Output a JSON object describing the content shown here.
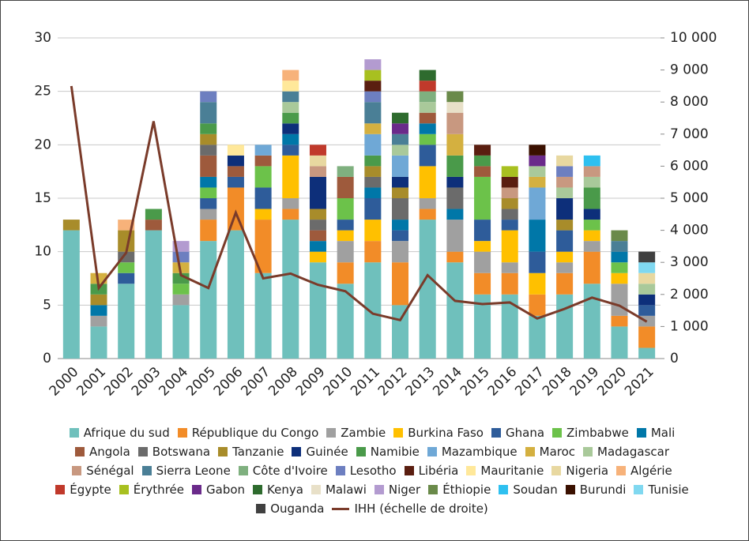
{
  "chart_data": {
    "type": "bar",
    "categories": [
      "2000",
      "2001",
      "2002",
      "2003",
      "2004",
      "2005",
      "2006",
      "2007",
      "2008",
      "2009",
      "2010",
      "2011",
      "2012",
      "2013",
      "2014",
      "2015",
      "2016",
      "2017",
      "2018",
      "2019",
      "2020",
      "2021"
    ],
    "ylim": [
      0,
      30
    ],
    "yticks": [
      0,
      5,
      10,
      15,
      20,
      25,
      30
    ],
    "y2lim": [
      0,
      10000
    ],
    "y2ticks": [
      0,
      {
        "value": 1000,
        "label": "1 000"
      },
      {
        "value": 2000,
        "label": "2 000"
      },
      {
        "value": 3000,
        "label": "3 000"
      },
      {
        "value": 4000,
        "label": "4 000"
      },
      {
        "value": 5000,
        "label": "5 000"
      },
      {
        "value": 6000,
        "label": "6 000"
      },
      {
        "value": 7000,
        "label": "7 000"
      },
      {
        "value": 8000,
        "label": "8 000"
      },
      {
        "value": 9000,
        "label": "9 000"
      },
      {
        "value": 10000,
        "label": "10 000"
      }
    ],
    "grid": true,
    "legend": "bottom",
    "series": [
      {
        "name": "Afrique du sud",
        "color": "#6fc0bc",
        "values": [
          12,
          3,
          7,
          12,
          5,
          11,
          12,
          8,
          13,
          9,
          7,
          9,
          5,
          13,
          9,
          6,
          6,
          4,
          6,
          7,
          3,
          1
        ]
      },
      {
        "name": "République du Congo",
        "color": "#f28c28",
        "values": [
          0,
          0,
          0,
          0,
          0,
          2,
          4,
          5,
          1,
          0,
          2,
          2,
          4,
          1,
          1,
          2,
          2,
          2,
          2,
          3,
          1,
          2
        ]
      },
      {
        "name": "Zambie",
        "color": "#a0a0a0",
        "values": [
          0,
          1,
          0,
          0,
          1,
          1,
          0,
          0,
          1,
          0,
          2,
          0,
          2,
          1,
          3,
          2,
          1,
          0,
          1,
          1,
          3,
          1
        ]
      },
      {
        "name": "Burkina Faso",
        "color": "#ffc000",
        "values": [
          0,
          0,
          0,
          0,
          0,
          0,
          0,
          1,
          4,
          1,
          1,
          2,
          0,
          3,
          0,
          1,
          3,
          2,
          1,
          1,
          1,
          0
        ]
      },
      {
        "name": "Ghana",
        "color": "#2e5c9a",
        "values": [
          0,
          0,
          1,
          0,
          0,
          1,
          1,
          2,
          1,
          0,
          1,
          2,
          1,
          2,
          0,
          2,
          1,
          2,
          2,
          0,
          0,
          1
        ]
      },
      {
        "name": "Zimbabwe",
        "color": "#6cc24a",
        "values": [
          0,
          0,
          1,
          0,
          1,
          1,
          0,
          2,
          0,
          0,
          2,
          0,
          0,
          1,
          0,
          4,
          0,
          0,
          0,
          1,
          1,
          0
        ]
      },
      {
        "name": "Mali",
        "color": "#0077a8",
        "values": [
          0,
          1,
          0,
          0,
          0,
          1,
          0,
          0,
          1,
          1,
          0,
          1,
          1,
          1,
          1,
          0,
          0,
          3,
          0,
          0,
          1,
          0
        ]
      },
      {
        "name": "Angola",
        "color": "#9e5a3c",
        "values": [
          0,
          0,
          0,
          1,
          0,
          2,
          1,
          1,
          0,
          1,
          2,
          0,
          0,
          1,
          0,
          1,
          0,
          0,
          0,
          0,
          0,
          0
        ]
      },
      {
        "name": "Botswana",
        "color": "#6b6b6b",
        "values": [
          0,
          0,
          1,
          0,
          0,
          1,
          0,
          0,
          0,
          1,
          0,
          1,
          2,
          0,
          2,
          0,
          1,
          0,
          0,
          0,
          0,
          0
        ]
      },
      {
        "name": "Tanzanie",
        "color": "#a88c2a",
        "values": [
          1,
          1,
          2,
          0,
          0,
          1,
          0,
          0,
          0,
          1,
          0,
          1,
          1,
          0,
          0,
          0,
          1,
          0,
          1,
          0,
          0,
          0
        ]
      },
      {
        "name": "Guinée",
        "color": "#0d2f7a",
        "values": [
          0,
          0,
          0,
          0,
          0,
          0,
          1,
          0,
          1,
          3,
          0,
          0,
          1,
          0,
          1,
          0,
          0,
          0,
          2,
          1,
          0,
          1
        ]
      },
      {
        "name": "Namibie",
        "color": "#4a9a4a",
        "values": [
          0,
          1,
          0,
          1,
          1,
          1,
          0,
          0,
          1,
          0,
          0,
          1,
          0,
          0,
          2,
          1,
          0,
          0,
          0,
          2,
          0,
          0
        ]
      },
      {
        "name": "Mazambique",
        "color": "#6fa8d6",
        "values": [
          0,
          0,
          0,
          0,
          0,
          0,
          0,
          1,
          0,
          0,
          0,
          2,
          2,
          0,
          0,
          0,
          0,
          3,
          0,
          0,
          0,
          0
        ]
      },
      {
        "name": "Maroc",
        "color": "#d4b040",
        "values": [
          0,
          1,
          0,
          0,
          1,
          0,
          0,
          0,
          0,
          0,
          0,
          1,
          0,
          0,
          2,
          0,
          0,
          1,
          0,
          0,
          0,
          0
        ]
      },
      {
        "name": "Madagascar",
        "color": "#a9c99a",
        "values": [
          0,
          0,
          0,
          0,
          0,
          0,
          0,
          0,
          1,
          0,
          0,
          0,
          1,
          1,
          0,
          0,
          0,
          1,
          1,
          1,
          0,
          1
        ]
      },
      {
        "name": "Sénégal",
        "color": "#c89880",
        "values": [
          0,
          0,
          0,
          0,
          0,
          0,
          0,
          0,
          0,
          1,
          0,
          0,
          0,
          0,
          2,
          0,
          1,
          0,
          1,
          1,
          0,
          0
        ]
      },
      {
        "name": "Sierra Leone",
        "color": "#4a7f96",
        "values": [
          0,
          0,
          0,
          0,
          0,
          2,
          0,
          0,
          1,
          0,
          0,
          2,
          1,
          0,
          0,
          0,
          0,
          0,
          0,
          0,
          1,
          0
        ]
      },
      {
        "name": "Côte d'Ivoire",
        "color": "#7fb07f",
        "values": [
          0,
          0,
          0,
          0,
          0,
          0,
          0,
          0,
          0,
          0,
          1,
          0,
          0,
          1,
          0,
          0,
          0,
          0,
          0,
          0,
          0,
          0
        ]
      },
      {
        "name": "Lesotho",
        "color": "#6d7fc0",
        "values": [
          0,
          0,
          0,
          0,
          1,
          1,
          0,
          0,
          0,
          0,
          0,
          1,
          0,
          0,
          0,
          0,
          0,
          0,
          1,
          0,
          0,
          0
        ]
      },
      {
        "name": "Libéria",
        "color": "#5a1e10",
        "values": [
          0,
          0,
          0,
          0,
          0,
          0,
          0,
          0,
          0,
          0,
          0,
          1,
          0,
          0,
          0,
          1,
          1,
          0,
          0,
          0,
          0,
          0
        ]
      },
      {
        "name": "Mauritanie",
        "color": "#ffe89a",
        "values": [
          0,
          0,
          0,
          0,
          0,
          0,
          1,
          0,
          1,
          0,
          0,
          0,
          0,
          0,
          0,
          0,
          0,
          0,
          0,
          0,
          0,
          0
        ]
      },
      {
        "name": "Nigeria",
        "color": "#e8d8a0",
        "values": [
          0,
          0,
          0,
          0,
          0,
          0,
          0,
          0,
          0,
          1,
          0,
          0,
          0,
          0,
          0,
          0,
          0,
          0,
          1,
          0,
          0,
          1
        ]
      },
      {
        "name": "Algérie",
        "color": "#f7b27a",
        "values": [
          0,
          0,
          1,
          0,
          0,
          0,
          0,
          0,
          1,
          0,
          0,
          0,
          0,
          0,
          0,
          0,
          0,
          0,
          0,
          0,
          0,
          0
        ]
      },
      {
        "name": "Égypte",
        "color": "#c0392b",
        "values": [
          0,
          0,
          0,
          0,
          0,
          0,
          0,
          0,
          0,
          1,
          0,
          0,
          0,
          1,
          0,
          0,
          0,
          0,
          0,
          0,
          0,
          0
        ]
      },
      {
        "name": "Érythrée",
        "color": "#a8c020",
        "values": [
          0,
          0,
          0,
          0,
          0,
          0,
          0,
          0,
          0,
          0,
          0,
          1,
          0,
          0,
          0,
          0,
          1,
          0,
          0,
          0,
          0,
          0
        ]
      },
      {
        "name": "Gabon",
        "color": "#6a2a8a",
        "values": [
          0,
          0,
          0,
          0,
          0,
          0,
          0,
          0,
          0,
          0,
          0,
          0,
          1,
          0,
          0,
          0,
          0,
          1,
          0,
          0,
          0,
          0
        ]
      },
      {
        "name": "Kenya",
        "color": "#2e6b2e",
        "values": [
          0,
          0,
          0,
          0,
          0,
          0,
          0,
          0,
          0,
          0,
          0,
          0,
          1,
          1,
          0,
          0,
          0,
          0,
          0,
          0,
          0,
          0
        ]
      },
      {
        "name": "Malawi",
        "color": "#e8e0c8",
        "values": [
          0,
          0,
          0,
          0,
          0,
          0,
          0,
          0,
          0,
          0,
          0,
          0,
          0,
          0,
          1,
          0,
          0,
          0,
          0,
          0,
          0,
          0
        ]
      },
      {
        "name": "Niger",
        "color": "#b39bd0",
        "values": [
          0,
          0,
          0,
          0,
          1,
          0,
          0,
          0,
          0,
          0,
          0,
          1,
          0,
          0,
          0,
          0,
          0,
          0,
          0,
          0,
          0,
          0
        ]
      },
      {
        "name": "Éthiopie",
        "color": "#6a8a4a",
        "values": [
          0,
          0,
          0,
          0,
          0,
          0,
          0,
          0,
          0,
          0,
          0,
          0,
          0,
          0,
          1,
          0,
          0,
          0,
          0,
          0,
          1,
          0
        ]
      },
      {
        "name": "Soudan",
        "color": "#2ec0f0",
        "values": [
          0,
          0,
          0,
          0,
          0,
          0,
          0,
          0,
          0,
          0,
          0,
          0,
          0,
          0,
          0,
          0,
          0,
          0,
          0,
          1,
          0,
          0
        ]
      },
      {
        "name": "Burundi",
        "color": "#3a1000",
        "values": [
          0,
          0,
          0,
          0,
          0,
          0,
          0,
          0,
          0,
          0,
          0,
          0,
          0,
          0,
          0,
          0,
          0,
          1,
          0,
          0,
          0,
          0
        ]
      },
      {
        "name": "Tunisie",
        "color": "#80d8f0",
        "values": [
          0,
          0,
          0,
          0,
          0,
          0,
          0,
          0,
          0,
          0,
          0,
          0,
          0,
          0,
          0,
          0,
          0,
          0,
          0,
          0,
          0,
          1
        ]
      },
      {
        "name": "Ouganda",
        "color": "#404040",
        "values": [
          0,
          0,
          0,
          0,
          0,
          0,
          0,
          0,
          0,
          0,
          0,
          0,
          0,
          0,
          0,
          0,
          0,
          0,
          0,
          0,
          0,
          1
        ]
      },
      {
        "name": "IHH (échelle de droite)",
        "color": "#7a3b2a",
        "type": "line",
        "axis": "y2",
        "values": [
          8500,
          2200,
          3300,
          7400,
          2600,
          2200,
          4550,
          2500,
          2650,
          2300,
          2100,
          1400,
          1200,
          2600,
          1800,
          1700,
          1750,
          1250,
          1550,
          1900,
          1650,
          1150
        ]
      }
    ]
  }
}
